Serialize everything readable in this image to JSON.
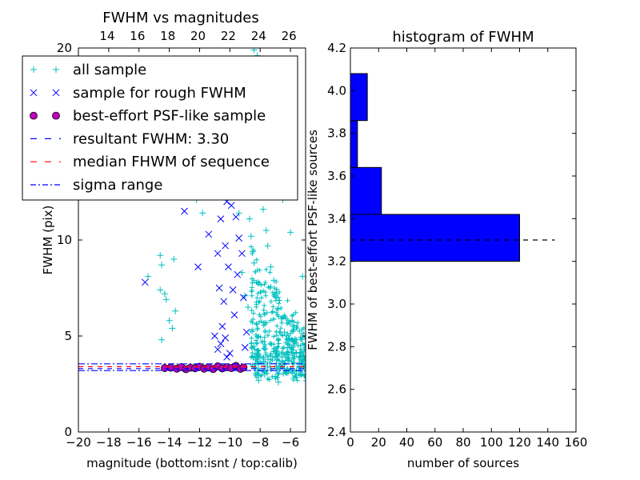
{
  "chart_data": [
    {
      "type": "scatter",
      "title": "FWHM vs magnitudes",
      "xlabel": "magnitude (bottom:isnt / top:calib)",
      "ylabel": "FWHM (pix)",
      "xlim": [
        -20,
        -5
      ],
      "ylim": [
        0,
        20
      ],
      "x_ticks": [
        "−20",
        "−18",
        "−16",
        "−14",
        "−12",
        "−10",
        "−8",
        "−6"
      ],
      "x_tick_values": [
        -20,
        -18,
        -16,
        -14,
        -12,
        -10,
        -8,
        -6
      ],
      "top_ticks": [
        "14",
        "16",
        "18",
        "20",
        "22",
        "24",
        "26"
      ],
      "top_tick_values": [
        -18.1,
        -16.1,
        -14.1,
        -12.1,
        -10.1,
        -8.1,
        -6.1
      ],
      "y_ticks": [
        "0",
        "5",
        "10",
        "20"
      ],
      "y_tick_values": [
        0,
        5,
        10,
        20
      ],
      "legend_position": "upper-left",
      "legend": [
        {
          "label": "all sample",
          "marker": "plus",
          "color": "#00bfbf"
        },
        {
          "label": "sample for rough FWHM",
          "marker": "x",
          "color": "#0000ff"
        },
        {
          "label": "best-effort PSF-like sample",
          "marker": "circle",
          "color": "#bf00bf"
        },
        {
          "label": "resultant FWHM: 3.30",
          "marker": "dashed",
          "color": "#0000ff"
        },
        {
          "label": "median FHWM of sequence",
          "marker": "dashed",
          "color": "#ff0000"
        },
        {
          "label": "sigma range",
          "marker": "dashdot",
          "color": "#0000ff"
        }
      ],
      "reference_lines": {
        "resultant_fwhm": 3.3,
        "median_fwhm": 3.4,
        "sigma_range": [
          3.2,
          3.55
        ]
      },
      "series": [
        {
          "name": "all sample",
          "marker": "plus",
          "color": "#00bfbf",
          "points": [
            [
              -15.4,
              8.1
            ],
            [
              -14.6,
              9.2
            ],
            [
              -14.6,
              7.4
            ],
            [
              -14.5,
              8.7
            ],
            [
              -14.3,
              7.2
            ],
            [
              -14.2,
              6.9
            ],
            [
              -14.0,
              5.8
            ],
            [
              -13.8,
              5.4
            ],
            [
              -13.7,
              9.0
            ],
            [
              -13.6,
              6.3
            ],
            [
              -14.5,
              4.8
            ],
            [
              -14.7,
              12.4
            ],
            [
              -12.2,
              12.1
            ],
            [
              -11.8,
              11.4
            ],
            [
              -11.5,
              12.3
            ],
            [
              -11.0,
              13.6
            ],
            [
              -10.5,
              13.2
            ],
            [
              -9.6,
              13.8
            ],
            [
              -9.5,
              12.7
            ],
            [
              -9.4,
              11.4
            ],
            [
              -9.2,
              8.3
            ],
            [
              -9.0,
              7.1
            ],
            [
              -8.8,
              6.5
            ],
            [
              -8.7,
              11.1
            ],
            [
              -8.6,
              10.2
            ],
            [
              -8.5,
              9.4
            ],
            [
              -8.4,
              8.8
            ],
            [
              -8.4,
              19.9
            ],
            [
              -8.2,
              19.6
            ],
            [
              -8.0,
              18.5
            ],
            [
              -7.9,
              12.3
            ],
            [
              -7.8,
              11.6
            ],
            [
              -7.6,
              10.5
            ],
            [
              -7.5,
              9.7
            ],
            [
              -7.3,
              8.6
            ],
            [
              -7.1,
              7.9
            ],
            [
              -6.9,
              7.2
            ],
            [
              -6.8,
              6.4
            ],
            [
              -6.6,
              5.9
            ],
            [
              -6.4,
              5.2
            ],
            [
              -6.1,
              4.8
            ],
            [
              -5.9,
              4.4
            ],
            [
              -5.6,
              4.1
            ],
            [
              -5.4,
              3.9
            ],
            [
              -5.2,
              8.1
            ],
            [
              -6.0,
              10.4
            ],
            [
              -6.5,
              12.1
            ],
            [
              -7.2,
              13.3
            ],
            [
              -6.3,
              3.1
            ],
            [
              -7.0,
              2.9
            ],
            [
              -7.7,
              3.0
            ],
            [
              -8.1,
              2.7
            ],
            [
              -6.8,
              2.6
            ],
            [
              -5.8,
              2.8
            ]
          ]
        },
        {
          "name": "sample for rough FWHM",
          "marker": "x",
          "color": "#0000ff",
          "points": [
            [
              -15.6,
              7.8
            ],
            [
              -13.0,
              11.5
            ],
            [
              -12.1,
              8.6
            ],
            [
              -11.4,
              10.3
            ],
            [
              -11.0,
              5.0
            ],
            [
              -10.8,
              4.3
            ],
            [
              -10.6,
              4.6
            ],
            [
              -10.5,
              5.5
            ],
            [
              -10.3,
              4.9
            ],
            [
              -10.2,
              3.9
            ],
            [
              -10.0,
              4.1
            ],
            [
              -9.9,
              11.8
            ],
            [
              -9.6,
              11.2
            ],
            [
              -9.4,
              10.1
            ],
            [
              -9.2,
              9.3
            ],
            [
              -9.0,
              4.4
            ],
            [
              -8.9,
              5.2
            ],
            [
              -10.9,
              12.6
            ],
            [
              -10.6,
              11.1
            ],
            [
              -10.3,
              9.7
            ],
            [
              -10.1,
              8.6
            ],
            [
              -9.8,
              7.4
            ],
            [
              -9.7,
              6.1
            ],
            [
              -9.3,
              12.4
            ],
            [
              -10.4,
              6.8
            ],
            [
              -10.7,
              7.5
            ],
            [
              -9.5,
              8.2
            ],
            [
              -9.1,
              7.0
            ],
            [
              -10.8,
              9.3
            ],
            [
              -10.2,
              12.0
            ]
          ]
        },
        {
          "name": "best-effort PSF-like sample",
          "marker": "circle",
          "color": "#bf00bf",
          "points": [
            [
              -14.3,
              3.33
            ],
            [
              -13.9,
              3.35
            ],
            [
              -13.5,
              3.3
            ],
            [
              -13.2,
              3.38
            ],
            [
              -12.9,
              3.27
            ],
            [
              -12.6,
              3.35
            ],
            [
              -12.3,
              3.32
            ],
            [
              -12.0,
              3.4
            ],
            [
              -11.7,
              3.3
            ],
            [
              -11.4,
              3.36
            ],
            [
              -11.1,
              3.28
            ],
            [
              -10.8,
              3.42
            ],
            [
              -10.5,
              3.31
            ],
            [
              -10.2,
              3.37
            ],
            [
              -9.9,
              3.33
            ],
            [
              -9.6,
              3.44
            ],
            [
              -9.3,
              3.29
            ],
            [
              -9.1,
              3.36
            ]
          ]
        }
      ]
    },
    {
      "type": "bar",
      "orientation": "horizontal",
      "title": "histogram of FWHM",
      "xlabel": "number of sources",
      "ylabel": "FWHM of best-effort PSF-like sources",
      "xlim": [
        0,
        160
      ],
      "ylim": [
        2.4,
        4.2
      ],
      "x_ticks": [
        "0",
        "20",
        "40",
        "60",
        "80",
        "100",
        "120",
        "140",
        "160"
      ],
      "x_tick_values": [
        0,
        20,
        40,
        60,
        80,
        100,
        120,
        140,
        160
      ],
      "y_ticks": [
        "2.4",
        "2.6",
        "2.8",
        "3.0",
        "3.2",
        "3.4",
        "3.6",
        "3.8",
        "4.0",
        "4.2"
      ],
      "y_tick_values": [
        2.4,
        2.6,
        2.8,
        3.0,
        3.2,
        3.4,
        3.6,
        3.8,
        4.0,
        4.2
      ],
      "bar_color": "#0000ff",
      "bins": [
        {
          "low": 3.2,
          "high": 3.42,
          "count": 120
        },
        {
          "low": 3.42,
          "high": 3.64,
          "count": 22
        },
        {
          "low": 3.64,
          "high": 3.86,
          "count": 5
        },
        {
          "low": 3.86,
          "high": 4.08,
          "count": 12
        }
      ],
      "reference_line": {
        "y": 3.3,
        "x_range": [
          0,
          145
        ]
      }
    }
  ]
}
